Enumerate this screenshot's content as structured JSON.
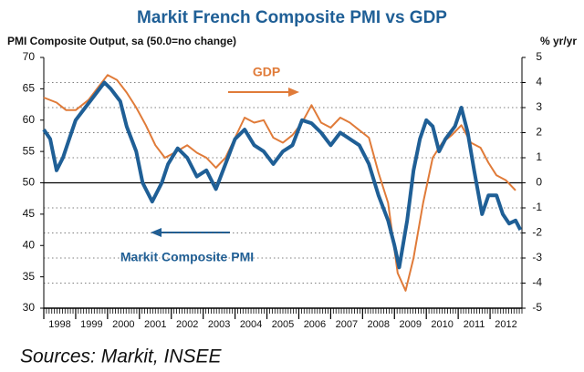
{
  "chart_data": {
    "type": "line",
    "title": "Markit French Composite PMI vs GDP",
    "y_label": "PMI Composite Output, sa (50.0=no change)",
    "y2_label": "% yr/yr",
    "annotations": [
      "GDP",
      "Markit Composite PMI"
    ],
    "source": "Sources: Markit, INSEE",
    "xlim": [
      1998,
      2013
    ],
    "xticks": [
      1998,
      1999,
      2000,
      2001,
      2002,
      2003,
      2004,
      2005,
      2006,
      2007,
      2008,
      2009,
      2010,
      2011,
      2012
    ],
    "ylim": [
      30,
      70
    ],
    "yticks": [
      30,
      35,
      40,
      45,
      50,
      55,
      60,
      65,
      70
    ],
    "y2lim": [
      -5,
      5
    ],
    "y2ticks": [
      -5,
      -4,
      -3,
      -2,
      -1,
      0,
      1,
      2,
      3,
      4,
      5
    ],
    "grid": true,
    "series": [
      {
        "name": "Markit Composite PMI",
        "color": "#1f5f96",
        "axis": "y",
        "x": [
          1998.0,
          1998.2,
          1998.4,
          1998.6,
          1998.8,
          1999.0,
          1999.3,
          1999.6,
          1999.9,
          2000.1,
          2000.4,
          2000.6,
          2000.9,
          2001.1,
          2001.4,
          2001.7,
          2001.9,
          2002.2,
          2002.5,
          2002.8,
          2003.1,
          2003.4,
          2003.7,
          2004.0,
          2004.3,
          2004.6,
          2004.9,
          2005.2,
          2005.5,
          2005.8,
          2006.1,
          2006.4,
          2006.7,
          2007.0,
          2007.3,
          2007.6,
          2007.9,
          2008.2,
          2008.5,
          2008.8,
          2009.0,
          2009.15,
          2009.4,
          2009.6,
          2009.8,
          2010.0,
          2010.2,
          2010.4,
          2010.6,
          2010.9,
          2011.1,
          2011.3,
          2011.5,
          2011.75,
          2011.95,
          2012.2,
          2012.4,
          2012.6,
          2012.8,
          2012.95
        ],
        "values": [
          58.5,
          57,
          52,
          54,
          57,
          60,
          62,
          64,
          66,
          65,
          63,
          59,
          55,
          50,
          47,
          50,
          53,
          55.5,
          54,
          51,
          52,
          49,
          53,
          57,
          58.5,
          56,
          55,
          53,
          55,
          56,
          60,
          59.5,
          58,
          56,
          58,
          57,
          56,
          53,
          48,
          44,
          40,
          36.5,
          44,
          52,
          57,
          60,
          59,
          55,
          57,
          59,
          62,
          58,
          52,
          45,
          48,
          48,
          45,
          43.5,
          44,
          42.5
        ]
      },
      {
        "name": "GDP",
        "color": "#e07b39",
        "axis": "y2",
        "x": [
          1998.0,
          1998.4,
          1998.7,
          1999.0,
          1999.4,
          1999.7,
          2000.0,
          2000.3,
          2000.6,
          2000.9,
          2001.2,
          2001.5,
          2001.8,
          2002.1,
          2002.5,
          2002.8,
          2003.1,
          2003.4,
          2003.7,
          2004.0,
          2004.3,
          2004.6,
          2004.9,
          2005.2,
          2005.5,
          2005.8,
          2006.1,
          2006.4,
          2006.7,
          2007.0,
          2007.3,
          2007.6,
          2007.9,
          2008.2,
          2008.5,
          2008.8,
          2009.1,
          2009.35,
          2009.6,
          2009.9,
          2010.2,
          2010.5,
          2010.8,
          2011.1,
          2011.4,
          2011.7,
          2011.95,
          2012.2,
          2012.5,
          2012.8
        ],
        "values": [
          3.4,
          3.2,
          2.9,
          2.9,
          3.3,
          3.8,
          4.3,
          4.1,
          3.6,
          3.0,
          2.3,
          1.5,
          1.0,
          1.2,
          1.5,
          1.2,
          1.0,
          0.6,
          1.0,
          1.8,
          2.6,
          2.4,
          2.5,
          1.8,
          1.6,
          1.9,
          2.4,
          3.1,
          2.4,
          2.2,
          2.6,
          2.4,
          2.1,
          1.8,
          0.4,
          -0.8,
          -3.6,
          -4.3,
          -3.0,
          -0.8,
          1.0,
          1.6,
          1.9,
          2.3,
          1.6,
          1.4,
          0.8,
          0.3,
          0.1,
          -0.3
        ]
      }
    ]
  }
}
